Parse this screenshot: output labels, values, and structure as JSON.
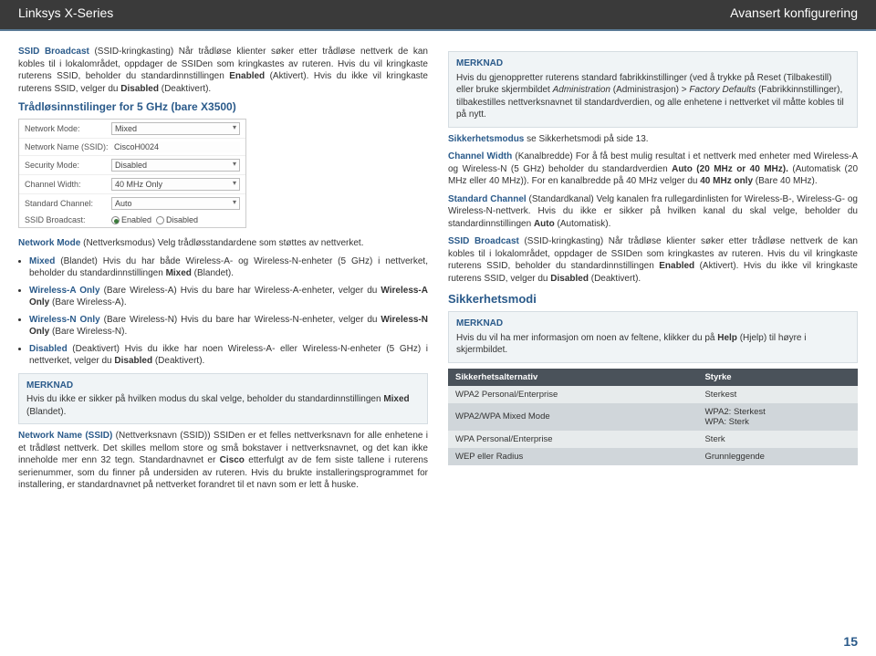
{
  "header": {
    "left": "Linksys X-Series",
    "right": "Avansert konfigurering"
  },
  "col1": {
    "p1a": "SSID Broadcast",
    "p1b": " (SSID-kringkasting) Når trådløse klienter søker etter trådløse nettverk de kan kobles til i lokalområdet, oppdager de SSIDen som kringkastes av ruteren. Hvis du vil kringkaste ruterens SSID, beholder du standardinnstillingen ",
    "p1c": "Enabled",
    "p1d": " (Aktivert). Hvis du ikke vil kringkaste ruterens SSID, velger du ",
    "p1e": "Disabled",
    "p1f": " (Deaktivert).",
    "h1": "Trådløsinnstilinger for 5 GHz (bare X3500)",
    "panel": {
      "rows": [
        {
          "label": "Network Mode:",
          "value": "Mixed",
          "dd": true
        },
        {
          "label": "Network Name (SSID):",
          "value": "CiscoH0024",
          "dd": false
        },
        {
          "label": "Security Mode:",
          "value": "Disabled",
          "dd": true
        },
        {
          "label": "Channel Width:",
          "value": "40 MHz Only",
          "dd": true
        },
        {
          "label": "Standard Channel:",
          "value": "Auto",
          "dd": true
        }
      ],
      "ssid_label": "SSID Broadcast:",
      "enabled": "Enabled",
      "disabled": "Disabled"
    },
    "p2a": "Network Mode",
    "p2b": " (Nettverksmodus) Velg trådløsstandardene som støttes av nettverket.",
    "bullets": [
      {
        "t": "Mixed",
        "body": " (Blandet) Hvis du har både Wireless-A- og Wireless-N-enheter (5 GHz) i nettverket, beholder du standardinnstillingen ",
        "tail_b": "Mixed",
        "tail": " (Blandet)."
      },
      {
        "t": "Wireless-A Only",
        "body": " (Bare Wireless-A) Hvis du bare har Wireless-A-enheter, velger du ",
        "tail_b": "Wireless-A Only",
        "tail": " (Bare Wireless-A)."
      },
      {
        "t": "Wireless-N Only",
        "body": " (Bare Wireless-N) Hvis du bare har Wireless-N-enheter, velger du ",
        "tail_b": "Wireless-N Only",
        "tail": " (Bare Wireless-N)."
      },
      {
        "t": "Disabled",
        "body": " (Deaktivert) Hvis du ikke har noen Wireless-A- eller Wireless-N-enheter (5 GHz) i nettverket, velger du ",
        "tail_b": "Disabled",
        "tail": " (Deaktivert)."
      }
    ],
    "note1": {
      "title": "MERKNAD",
      "body": " Hvis du ikke er sikker på hvilken modus du skal velge, beholder du standardinnstillingen ",
      "bold": "Mixed",
      "tail": " (Blandet)."
    },
    "p3a": "Network Name (SSID)",
    "p3b": " (Nettverksnavn (SSID)) SSIDen er et felles nettverksnavn for alle enhetene i et trådløst nettverk. Det skilles mellom store og små bokstaver i nettverksnavnet, og det kan ikke inneholde mer enn 32 tegn. Standardnavnet er ",
    "p3c": "Cisco",
    "p3d": " etterfulgt av de fem siste tallene i ruterens serienummer, som du finner på undersiden av ruteren. Hvis du brukte installeringsprogrammet for installering, er standardnavnet på nettverket forandret til et navn som er lett å huske."
  },
  "col2": {
    "note1": {
      "title": "MERKNAD",
      "body": "Hvis du gjenoppretter ruterens standard fabrikkinstillinger (ved å trykke på Reset (Tilbakestill) eller bruke skjermbildet ",
      "i1": "Administration",
      "mid1": " (Administrasjon) > ",
      "i2": "Factory Defaults",
      "mid2": " (Fabrikkinnstillinger), tilbakestilles nettverksnavnet til standardverdien, og alle enhetene i nettverket vil måtte kobles til på nytt."
    },
    "p1a": "Sikkerhetsmodus",
    "p1b": "  se Sikkerhetsmodi på side 13.",
    "p2a": "Channel Width",
    "p2b": " (Kanalbredde) For å få best mulig resultat i et nettverk med enheter med Wireless-A og Wireless-N (5 GHz) beholder du standardverdien ",
    "p2c": "Auto (20 MHz or 40 MHz).",
    "p2d": " (Automatisk (20 MHz eller 40 MHz)). For en kanalbredde på 40 MHz velger du ",
    "p2e": "40 MHz only",
    "p2f": " (Bare 40 MHz).",
    "p3a": "Standard Channel",
    "p3b": " (Standardkanal) Velg kanalen fra rullegardinlisten for Wireless-B-, Wireless-G- og Wireless-N-nettverk. Hvis du ikke er sikker på hvilken kanal du skal velge, beholder du standardinnstillingen ",
    "p3c": "Auto",
    "p3d": " (Automatisk).",
    "p4a": "SSID Broadcast",
    "p4b": " (SSID-kringkasting) Når trådløse klienter søker etter trådløse nettverk de kan kobles til i lokalområdet, oppdager de SSIDen som kringkastes av ruteren. Hvis du vil kringkaste ruterens SSID, beholder du standardinnstillingen ",
    "p4c": "Enabled",
    "p4d": " (Aktivert). Hvis du ikke vil kringkaste ruterens SSID, velger du ",
    "p4e": "Disabled",
    "p4f": " (Deaktivert).",
    "h2": "Sikkerhetsmodi",
    "note2": {
      "title": "MERKNAD",
      "body": "Hvis du vil ha mer informasjon om noen av feltene, klikker du på ",
      "bold": "Help",
      "tail": " (Hjelp) til høyre i skjermbildet."
    },
    "table": {
      "head": [
        "Sikkerhetsalternativ",
        "Styrke"
      ],
      "rows": [
        {
          "c": [
            "WPA2 Personal/Enterprise",
            "Sterkest"
          ],
          "cls": "light"
        },
        {
          "c": [
            "WPA2/WPA Mixed Mode",
            "WPA2: Sterkest\nWPA: Sterk"
          ],
          "cls": "dark"
        },
        {
          "c": [
            "WPA Personal/Enterprise",
            "Sterk"
          ],
          "cls": "light"
        },
        {
          "c": [
            "WEP eller Radius",
            "Grunnleggende"
          ],
          "cls": "dark"
        }
      ]
    }
  },
  "page": "15"
}
